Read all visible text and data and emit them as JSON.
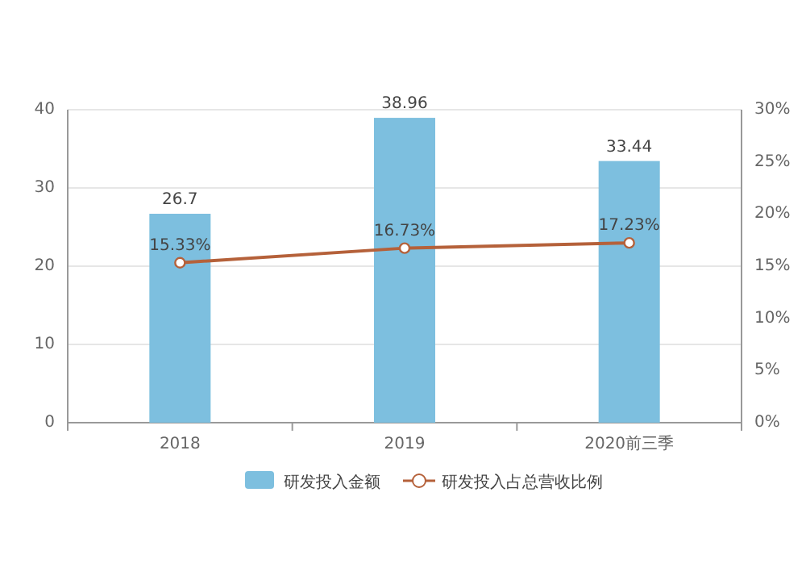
{
  "chart_data": {
    "type": "bar",
    "categories": [
      "2018",
      "2019",
      "2020前三季"
    ],
    "series": [
      {
        "name": "研发投入金额",
        "type": "bar",
        "color": "#7dbfdf",
        "values": [
          26.7,
          38.96,
          33.44
        ],
        "value_labels": [
          "26.7",
          "38.96",
          "33.44"
        ]
      },
      {
        "name": "研发投入占总营收比例",
        "type": "line",
        "axis": "y2",
        "color": "#b5613a",
        "marker": "circle",
        "values": [
          15.33,
          16.73,
          17.23
        ],
        "value_labels": [
          "15.33%",
          "16.73%",
          "17.23%"
        ]
      }
    ],
    "ylim": [
      0,
      40
    ],
    "yticks": [
      0,
      10,
      20,
      30,
      40
    ],
    "y2lim": [
      0,
      30
    ],
    "y2ticks": [
      {
        "value": 0,
        "label": "0%"
      },
      {
        "value": 5,
        "label": "5%"
      },
      {
        "value": 10,
        "label": "10%"
      },
      {
        "value": 15,
        "label": "15%"
      },
      {
        "value": 20,
        "label": "20%"
      },
      {
        "value": 25,
        "label": "25%"
      },
      {
        "value": 30,
        "label": "30%"
      }
    ],
    "grid": "y",
    "legend": "bottom"
  }
}
